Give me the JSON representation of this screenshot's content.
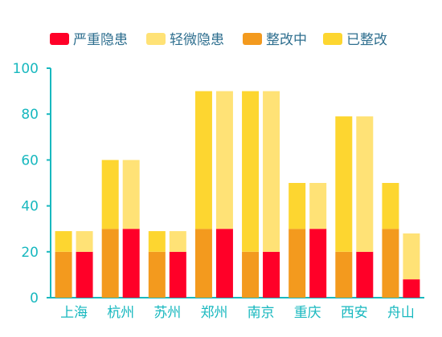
{
  "chart_data": {
    "type": "bar",
    "title": "",
    "xlabel": "",
    "ylabel": "",
    "ylim": [
      0,
      100
    ],
    "yticks": [
      0,
      20,
      40,
      60,
      80,
      100
    ],
    "categories": [
      "上海",
      "杭州",
      "苏州",
      "郑州",
      "南京",
      "重庆",
      "西安",
      "舟山"
    ],
    "legend_position": "top",
    "grid": false,
    "stacks": [
      {
        "name": "stack-left",
        "series": [
          {
            "name": "整改中",
            "color": "#f39a1e",
            "values": [
              20,
              30,
              20,
              30,
              20,
              30,
              20,
              30
            ]
          },
          {
            "name": "已整改",
            "color": "#fdd630",
            "values": [
              9,
              30,
              9,
              60,
              70,
              20,
              59,
              20
            ]
          }
        ]
      },
      {
        "name": "stack-right",
        "series": [
          {
            "name": "严重隐患",
            "color": "#ff0028",
            "values": [
              20,
              30,
              20,
              30,
              20,
              30,
              20,
              8
            ]
          },
          {
            "name": "轻微隐患",
            "color": "#ffe276",
            "values": [
              9,
              30,
              9,
              60,
              70,
              20,
              59,
              20
            ]
          }
        ]
      }
    ]
  },
  "legend": [
    {
      "label": "严重隐患",
      "color": "#ff0028"
    },
    {
      "label": "轻微隐患",
      "color": "#ffe276"
    },
    {
      "label": "整改中",
      "color": "#f39a1e"
    },
    {
      "label": "已整改",
      "color": "#fdd630"
    }
  ],
  "colors": {
    "axis": "#18b8bf",
    "legend_text": "#2f6f8f"
  }
}
